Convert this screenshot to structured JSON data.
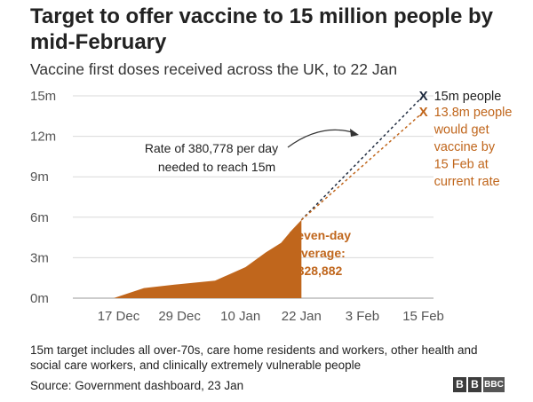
{
  "header": {
    "title": "Target to offer vaccine to 15 million people by mid-February",
    "subtitle": "Vaccine first doses received across the UK, to 22 Jan"
  },
  "footer": {
    "note": "15m target includes all over-70s, care home residents and workers, other health and social care workers, and clinically extremely vulnerable people",
    "source": "Source: Government dashboard, 23 Jan",
    "logo": [
      "B",
      "B",
      "BBC"
    ]
  },
  "colors": {
    "area": "#c0661c",
    "target": "#1f2b3f",
    "projection": "#c0661c",
    "grid": "#d9d9d9",
    "axis_text": "#555555"
  },
  "chart_data": {
    "type": "area",
    "title": "Target to offer vaccine to 15 million people by mid-February",
    "subtitle": "Vaccine first doses received across the UK, to 22 Jan",
    "xlabel": "",
    "ylabel": "",
    "x_ticks": [
      "17 Dec",
      "29 Dec",
      "10 Jan",
      "22 Jan",
      "3 Feb",
      "15 Feb"
    ],
    "x_tick_days": [
      9,
      21,
      33,
      45,
      57,
      69
    ],
    "y_ticks": [
      "0m",
      "3m",
      "6m",
      "9m",
      "12m",
      "15m"
    ],
    "ylim": [
      0,
      15
    ],
    "xlim_days": [
      0,
      71
    ],
    "grid": true,
    "series": [
      {
        "name": "Vaccine first doses received",
        "style": "filled-area",
        "days": [
          8,
          14,
          20,
          28,
          34,
          38,
          41,
          43,
          45
        ],
        "values_millions": [
          0.0,
          0.75,
          1.0,
          1.3,
          2.3,
          3.4,
          4.1,
          5.0,
          5.8
        ]
      },
      {
        "name": "15m people",
        "style": "dashed-line",
        "days": [
          45,
          69
        ],
        "values_millions": [
          5.8,
          15.0
        ],
        "end_label": "15m people"
      },
      {
        "name": "13.8m people would get vaccine by 15 Feb at current rate",
        "style": "dashed-line",
        "days": [
          45,
          69
        ],
        "values_millions": [
          5.8,
          13.8
        ],
        "end_label_lines": [
          "13.8m people",
          "would get",
          "vaccine by",
          "15 Feb at",
          "current rate"
        ]
      }
    ],
    "annotations": {
      "rate_lines": [
        "Rate of 380,778 per day",
        "needed to reach 15m"
      ],
      "average_lines": [
        "Seven-day",
        "average:",
        "328,882"
      ]
    }
  }
}
